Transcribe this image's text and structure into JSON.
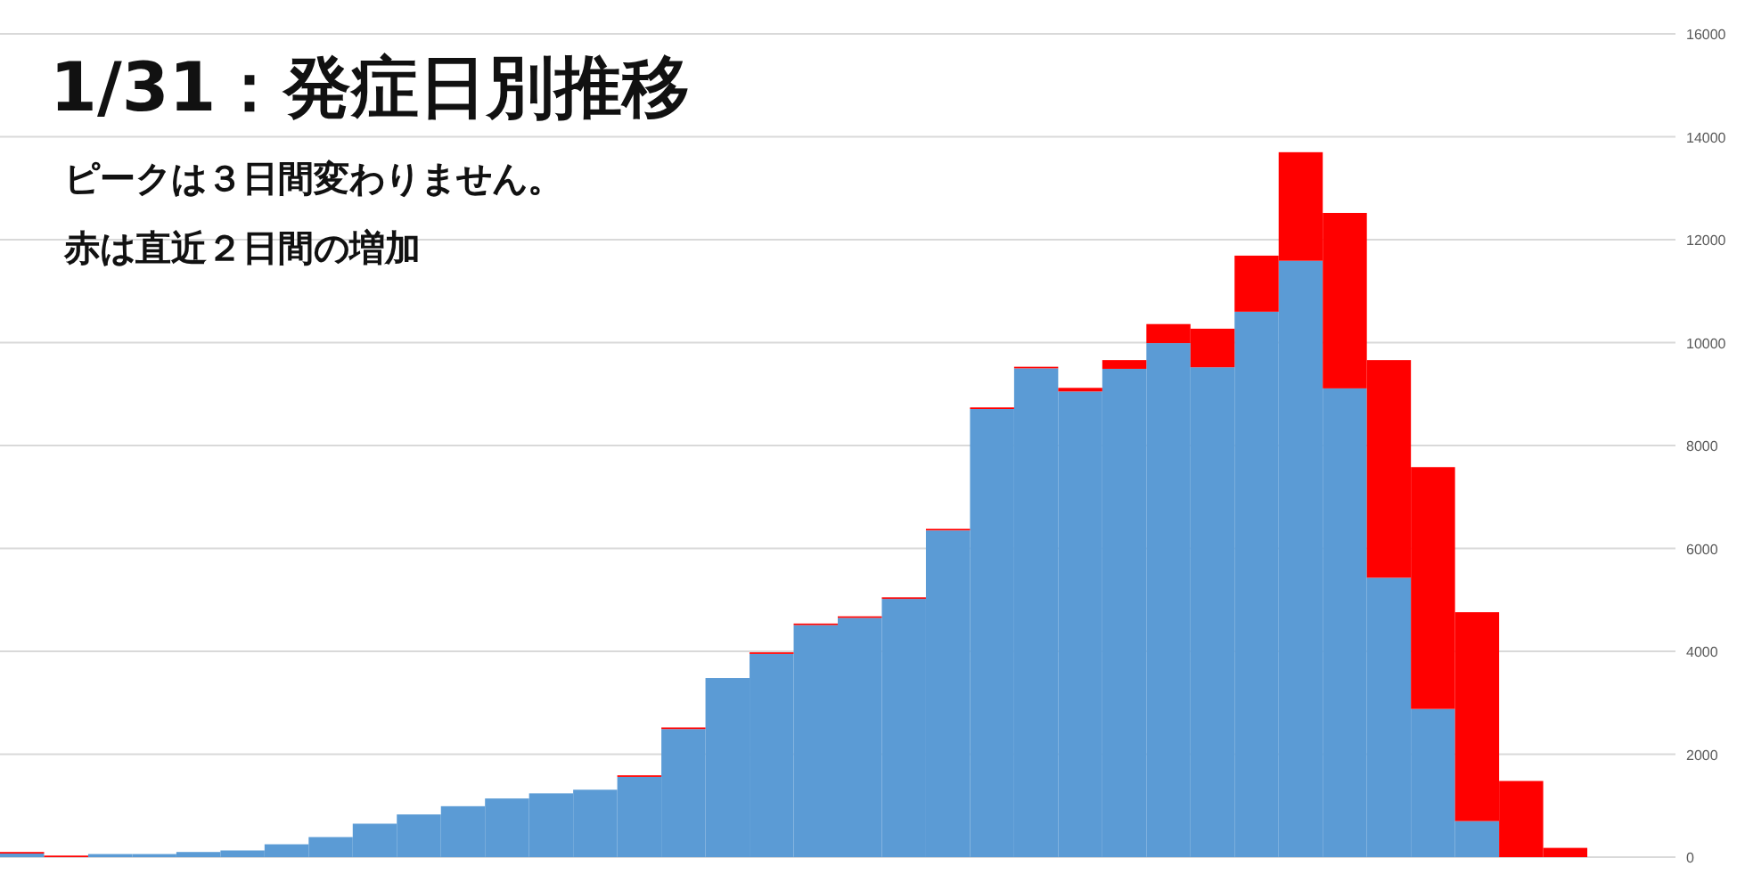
{
  "chart_data": {
    "type": "bar",
    "title": "1/31：発症日別推移",
    "annotations": [
      "ピークは３日間変わりません。",
      "赤は直近２日間の増加"
    ],
    "categories": [
      null,
      null,
      null,
      null,
      null,
      null,
      null,
      null,
      null,
      null,
      null,
      null,
      null,
      null,
      null,
      null,
      null,
      null,
      null,
      null,
      null,
      null,
      null,
      null,
      null,
      null,
      null,
      null,
      null,
      null,
      null,
      null,
      null,
      null,
      null,
      null,
      null,
      null
    ],
    "stacked": true,
    "series": [
      {
        "color": "#5b9bd5",
        "values": [
          70,
          null,
          60,
          60,
          100,
          130,
          250,
          390,
          650,
          830,
          990,
          1140,
          1240,
          1310,
          1560,
          2490,
          3480,
          3950,
          4510,
          4650,
          5020,
          6350,
          8710,
          9500,
          9050,
          9490,
          9990,
          9520,
          10600,
          11590,
          9110,
          5430,
          2880,
          700,
          0,
          0,
          null,
          null
        ]
      },
      {
        "color": "#ff0000",
        "values": [
          30,
          30,
          0,
          0,
          0,
          0,
          0,
          0,
          0,
          0,
          0,
          0,
          0,
          0,
          30,
          30,
          0,
          30,
          30,
          30,
          30,
          30,
          30,
          30,
          70,
          170,
          370,
          750,
          1090,
          2110,
          3410,
          4230,
          4700,
          4060,
          1480,
          180,
          null,
          null
        ]
      }
    ],
    "ylim": [
      0,
      16000
    ],
    "yticks": [
      0,
      2000,
      4000,
      6000,
      8000,
      10000,
      12000,
      14000,
      16000
    ],
    "grid": "y",
    "tick_labels": "y"
  }
}
